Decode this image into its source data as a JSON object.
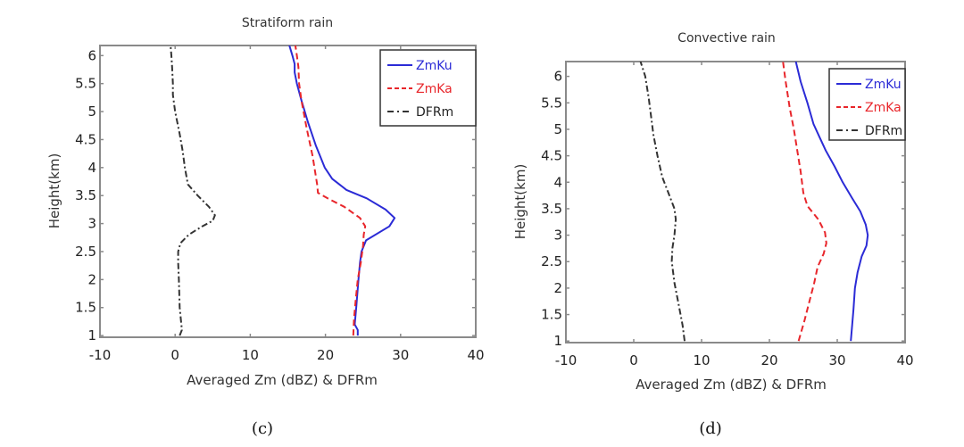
{
  "chart_data": [
    {
      "type": "line",
      "panel": "(c)",
      "title": "Stratiform rain",
      "xlabel": "Averaged Zm (dBZ) & DFRm",
      "ylabel": "Height(km)",
      "xlim": [
        -10,
        40
      ],
      "ylim": [
        0.97,
        6.18
      ],
      "xticks": [
        -10,
        0,
        10,
        20,
        30,
        40
      ],
      "xtick_labels": [
        "-10",
        "0",
        "10",
        "20",
        "30",
        "40"
      ],
      "yticks": [
        1,
        1.5,
        2,
        2.5,
        3,
        3.5,
        4,
        4.5,
        5,
        5.5,
        6
      ],
      "ytick_labels": [
        "1",
        "1.5",
        "2",
        "2.5",
        "3",
        "3.5",
        "4",
        "4.5",
        "5",
        "5.5",
        "6"
      ],
      "legend_position": "top-right",
      "series": [
        {
          "name": "ZmKu",
          "color": "#2b2bd6",
          "style": "solid",
          "x": [
            24.3,
            24.3,
            23.9,
            24.1,
            24.4,
            24.6,
            24.8,
            25.4,
            28.5,
            29.2,
            28.0,
            25.5,
            22.8,
            20.9,
            19.9,
            18.7,
            17.7,
            16.8,
            16.2,
            15.9,
            15.9,
            15.6,
            15.2
          ],
          "y": [
            1.0,
            1.1,
            1.2,
            1.5,
            2.0,
            2.3,
            2.5,
            2.7,
            2.95,
            3.1,
            3.25,
            3.45,
            3.6,
            3.8,
            4.0,
            4.4,
            4.8,
            5.2,
            5.5,
            5.7,
            5.85,
            6.0,
            6.18
          ]
        },
        {
          "name": "ZmKa",
          "color": "#e8262b",
          "style": "dashed",
          "x": [
            23.7,
            23.8,
            24.0,
            24.3,
            24.7,
            25.0,
            25.1,
            25.3,
            24.6,
            22.5,
            20.3,
            19.0,
            18.9,
            18.3,
            17.5,
            16.8,
            16.5,
            16.4,
            16.2,
            16.0
          ],
          "y": [
            1.0,
            1.3,
            1.6,
            2.0,
            2.3,
            2.6,
            2.8,
            2.95,
            3.1,
            3.3,
            3.45,
            3.55,
            3.7,
            4.2,
            4.7,
            5.2,
            5.5,
            5.8,
            6.0,
            6.18
          ]
        },
        {
          "name": "DFRm",
          "color": "#333333",
          "style": "dashdot",
          "x": [
            0.6,
            0.9,
            0.6,
            0.5,
            0.4,
            0.4,
            0.7,
            1.8,
            3.6,
            5.0,
            5.3,
            4.5,
            3.0,
            1.7,
            1.3,
            1.0,
            0.6,
            0.0,
            -0.3,
            -0.3,
            -0.4,
            -0.5,
            -0.6
          ],
          "y": [
            1.0,
            1.1,
            1.5,
            2.0,
            2.3,
            2.5,
            2.65,
            2.8,
            2.95,
            3.05,
            3.15,
            3.3,
            3.5,
            3.7,
            4.0,
            4.3,
            4.6,
            5.0,
            5.3,
            5.5,
            5.8,
            6.0,
            6.18
          ]
        }
      ]
    },
    {
      "type": "line",
      "panel": "(d)",
      "title": "Convective rain",
      "xlabel": "Averaged Zm (dBZ) & DFRm",
      "ylabel": "Height(km)",
      "xlim": [
        -10,
        40
      ],
      "ylim": [
        0.97,
        6.28
      ],
      "xticks": [
        -10,
        0,
        10,
        20,
        30,
        40
      ],
      "xtick_labels": [
        "-10",
        "0",
        "10",
        "20",
        "30",
        "40"
      ],
      "yticks": [
        1,
        1.5,
        2,
        2.5,
        3,
        3.5,
        4,
        4.5,
        5,
        5.5,
        6
      ],
      "ytick_labels": [
        "1",
        "1.5",
        "2",
        "2.5",
        "3",
        "3.5",
        "4",
        "4.5",
        "5",
        "5.5",
        "6"
      ],
      "legend_position": "top-right",
      "series": [
        {
          "name": "ZmKu",
          "color": "#2b2bd6",
          "style": "solid",
          "x": [
            32.0,
            32.2,
            32.4,
            32.6,
            33.0,
            33.6,
            34.3,
            34.5,
            34.2,
            33.4,
            32.2,
            30.8,
            29.6,
            28.3,
            27.4,
            26.5,
            25.6,
            24.6,
            23.9
          ],
          "y": [
            1.0,
            1.3,
            1.6,
            2.0,
            2.3,
            2.6,
            2.8,
            3.0,
            3.2,
            3.45,
            3.7,
            4.0,
            4.3,
            4.6,
            4.85,
            5.1,
            5.5,
            5.9,
            6.28
          ]
        },
        {
          "name": "ZmKa",
          "color": "#e8262b",
          "style": "dashed",
          "x": [
            24.3,
            25.2,
            26.0,
            26.6,
            27.1,
            28.0,
            28.4,
            28.2,
            27.2,
            25.6,
            25.0,
            24.6,
            24.1,
            23.6,
            23.0,
            22.4,
            22.0
          ],
          "y": [
            1.0,
            1.4,
            1.8,
            2.1,
            2.4,
            2.65,
            2.85,
            3.05,
            3.3,
            3.55,
            3.8,
            4.2,
            4.6,
            5.0,
            5.4,
            5.9,
            6.28
          ]
        },
        {
          "name": "DFRm",
          "color": "#333333",
          "style": "dashdot",
          "x": [
            7.5,
            7.2,
            6.6,
            6.0,
            5.6,
            5.7,
            6.0,
            6.2,
            6.0,
            5.1,
            4.2,
            3.5,
            2.9,
            2.5,
            2.2,
            1.7,
            1.0
          ],
          "y": [
            1.0,
            1.3,
            1.7,
            2.1,
            2.5,
            2.75,
            3.0,
            3.3,
            3.5,
            3.8,
            4.1,
            4.5,
            4.9,
            5.3,
            5.6,
            6.0,
            6.28
          ]
        }
      ]
    }
  ]
}
